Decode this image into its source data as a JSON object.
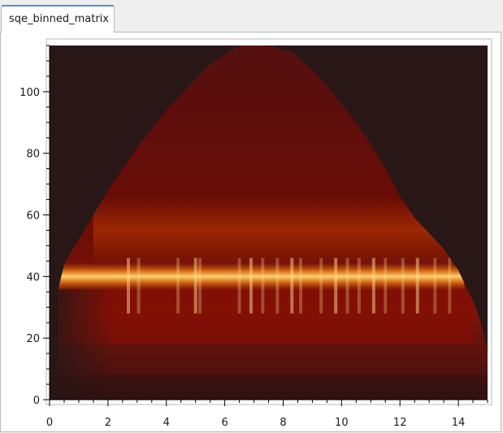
{
  "tab": {
    "label": "sqe_binned_matrix"
  },
  "chart_data": {
    "type": "heatmap",
    "title": "",
    "xlabel": "",
    "ylabel": "",
    "xlim": [
      0,
      15
    ],
    "ylim": [
      0,
      115
    ],
    "x_ticks": [
      0,
      2,
      4,
      6,
      8,
      10,
      12,
      14
    ],
    "y_ticks": [
      0,
      20,
      40,
      60,
      80,
      100
    ],
    "x_tick_labels": [
      "0",
      "2",
      "4",
      "6",
      "8",
      "10",
      "12",
      "14"
    ],
    "y_tick_labels": [
      "0",
      "20",
      "40",
      "60",
      "80",
      "100"
    ],
    "grid": false,
    "colormap": [
      "#2a1616",
      "#5a0c0c",
      "#8a1a04",
      "#c84a00",
      "#f3a030",
      "#fff0b0"
    ],
    "background_color": "#291717",
    "bright_band": {
      "y_center": 40,
      "x_range": [
        0.3,
        14.2
      ]
    }
  }
}
